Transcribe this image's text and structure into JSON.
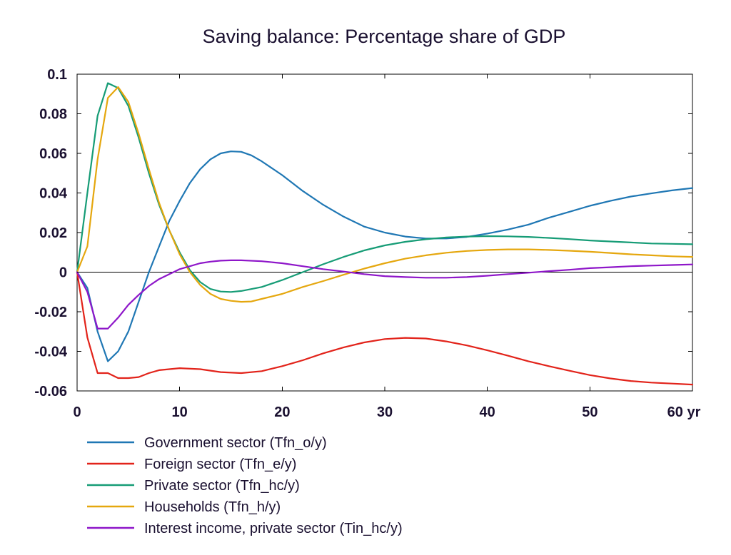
{
  "chart_data": {
    "type": "line",
    "title": "Saving balance: Percentage share of GDP",
    "xlabel": "yr",
    "ylabel": "",
    "xlim": [
      0,
      60
    ],
    "ylim": [
      -0.06,
      0.1
    ],
    "x_ticks": [
      0,
      10,
      20,
      30,
      40,
      50,
      60
    ],
    "x_tick_labels": [
      "0",
      "10",
      "20",
      "30",
      "40",
      "50",
      "60 yr"
    ],
    "y_ticks": [
      -0.06,
      -0.04,
      -0.02,
      0,
      0.02,
      0.04,
      0.06,
      0.08,
      0.1
    ],
    "y_tick_labels": [
      "-0.06",
      "-0.04",
      "-0.02",
      "0",
      "0.02",
      "0.04",
      "0.06",
      "0.08",
      "0.1"
    ],
    "zero_line": true,
    "grid": false,
    "legend_position": "bottom",
    "series": [
      {
        "name": "Government sector (Tfn_o/y)",
        "color": "#1f77b4",
        "points": [
          [
            0,
            0
          ],
          [
            1,
            -0.008
          ],
          [
            2,
            -0.03
          ],
          [
            3,
            -0.045
          ],
          [
            4,
            -0.04
          ],
          [
            5,
            -0.03
          ],
          [
            6,
            -0.015
          ],
          [
            7,
            0
          ],
          [
            8,
            0.013
          ],
          [
            9,
            0.026
          ],
          [
            10,
            0.036
          ],
          [
            11,
            0.045
          ],
          [
            12,
            0.052
          ],
          [
            13,
            0.057
          ],
          [
            14,
            0.06
          ],
          [
            15,
            0.061
          ],
          [
            16,
            0.0608
          ],
          [
            17,
            0.059
          ],
          [
            18,
            0.056
          ],
          [
            20,
            0.049
          ],
          [
            22,
            0.041
          ],
          [
            24,
            0.034
          ],
          [
            26,
            0.028
          ],
          [
            28,
            0.023
          ],
          [
            30,
            0.02
          ],
          [
            32,
            0.018
          ],
          [
            34,
            0.017
          ],
          [
            36,
            0.017
          ],
          [
            38,
            0.0178
          ],
          [
            40,
            0.0195
          ],
          [
            42,
            0.0215
          ],
          [
            44,
            0.024
          ],
          [
            46,
            0.0275
          ],
          [
            48,
            0.0305
          ],
          [
            50,
            0.0335
          ],
          [
            52,
            0.036
          ],
          [
            54,
            0.0382
          ],
          [
            56,
            0.0398
          ],
          [
            58,
            0.0413
          ],
          [
            60,
            0.0425
          ]
        ]
      },
      {
        "name": "Foreign sector (Tfn_e/y)",
        "color": "#e2231a",
        "points": [
          [
            0,
            0
          ],
          [
            1,
            -0.033
          ],
          [
            2,
            -0.051
          ],
          [
            3,
            -0.051
          ],
          [
            4,
            -0.0535
          ],
          [
            5,
            -0.0535
          ],
          [
            6,
            -0.053
          ],
          [
            7,
            -0.051
          ],
          [
            8,
            -0.0495
          ],
          [
            10,
            -0.0485
          ],
          [
            12,
            -0.049
          ],
          [
            14,
            -0.0505
          ],
          [
            16,
            -0.051
          ],
          [
            18,
            -0.05
          ],
          [
            20,
            -0.0475
          ],
          [
            22,
            -0.0445
          ],
          [
            24,
            -0.041
          ],
          [
            26,
            -0.038
          ],
          [
            28,
            -0.0355
          ],
          [
            30,
            -0.0338
          ],
          [
            32,
            -0.0332
          ],
          [
            34,
            -0.0335
          ],
          [
            36,
            -0.035
          ],
          [
            38,
            -0.037
          ],
          [
            40,
            -0.0395
          ],
          [
            42,
            -0.0422
          ],
          [
            44,
            -0.045
          ],
          [
            46,
            -0.0475
          ],
          [
            48,
            -0.0498
          ],
          [
            50,
            -0.052
          ],
          [
            52,
            -0.0537
          ],
          [
            54,
            -0.055
          ],
          [
            56,
            -0.0558
          ],
          [
            58,
            -0.0563
          ],
          [
            60,
            -0.0568
          ]
        ]
      },
      {
        "name": "Private sector (Tfn_hc/y)",
        "color": "#169c76",
        "points": [
          [
            0,
            0
          ],
          [
            1,
            0.04
          ],
          [
            2,
            0.079
          ],
          [
            3,
            0.0955
          ],
          [
            4,
            0.093
          ],
          [
            5,
            0.084
          ],
          [
            6,
            0.068
          ],
          [
            7,
            0.05
          ],
          [
            8,
            0.034
          ],
          [
            9,
            0.021
          ],
          [
            10,
            0.01
          ],
          [
            11,
            0.001
          ],
          [
            12,
            -0.005
          ],
          [
            13,
            -0.0085
          ],
          [
            14,
            -0.0098
          ],
          [
            15,
            -0.01
          ],
          [
            16,
            -0.0095
          ],
          [
            18,
            -0.0075
          ],
          [
            20,
            -0.004
          ],
          [
            22,
            0
          ],
          [
            24,
            0.004
          ],
          [
            26,
            0.0077
          ],
          [
            28,
            0.011
          ],
          [
            30,
            0.0135
          ],
          [
            32,
            0.0153
          ],
          [
            34,
            0.0166
          ],
          [
            36,
            0.0175
          ],
          [
            38,
            0.018
          ],
          [
            40,
            0.0182
          ],
          [
            42,
            0.0181
          ],
          [
            44,
            0.0178
          ],
          [
            46,
            0.0173
          ],
          [
            48,
            0.0167
          ],
          [
            50,
            0.016
          ],
          [
            52,
            0.0155
          ],
          [
            54,
            0.015
          ],
          [
            56,
            0.0145
          ],
          [
            58,
            0.0143
          ],
          [
            60,
            0.0141
          ]
        ]
      },
      {
        "name": "Households (Tfn_h/y)",
        "color": "#e5a70e",
        "points": [
          [
            0,
            0
          ],
          [
            1,
            0.013
          ],
          [
            2,
            0.057
          ],
          [
            3,
            0.088
          ],
          [
            4,
            0.0935
          ],
          [
            5,
            0.086
          ],
          [
            6,
            0.07
          ],
          [
            7,
            0.052
          ],
          [
            8,
            0.035
          ],
          [
            9,
            0.021
          ],
          [
            10,
            0.009
          ],
          [
            11,
            0
          ],
          [
            12,
            -0.0065
          ],
          [
            13,
            -0.011
          ],
          [
            14,
            -0.0135
          ],
          [
            15,
            -0.0145
          ],
          [
            16,
            -0.015
          ],
          [
            17,
            -0.0148
          ],
          [
            18,
            -0.0135
          ],
          [
            20,
            -0.011
          ],
          [
            22,
            -0.0075
          ],
          [
            24,
            -0.0045
          ],
          [
            26,
            -0.0013
          ],
          [
            28,
            0.0018
          ],
          [
            30,
            0.0045
          ],
          [
            32,
            0.0068
          ],
          [
            34,
            0.0085
          ],
          [
            36,
            0.0098
          ],
          [
            38,
            0.0107
          ],
          [
            40,
            0.0112
          ],
          [
            42,
            0.0115
          ],
          [
            44,
            0.0115
          ],
          [
            46,
            0.0112
          ],
          [
            48,
            0.0108
          ],
          [
            50,
            0.0103
          ],
          [
            52,
            0.0097
          ],
          [
            54,
            0.009
          ],
          [
            56,
            0.0085
          ],
          [
            58,
            0.008
          ],
          [
            60,
            0.0077
          ]
        ]
      },
      {
        "name": "Interest income, private sector (Tin_hc/y)",
        "color": "#8e16c9",
        "points": [
          [
            0,
            0
          ],
          [
            1,
            -0.01
          ],
          [
            2,
            -0.0285
          ],
          [
            3,
            -0.0285
          ],
          [
            4,
            -0.023
          ],
          [
            5,
            -0.0165
          ],
          [
            6,
            -0.0115
          ],
          [
            7,
            -0.007
          ],
          [
            8,
            -0.0035
          ],
          [
            9,
            -0.001
          ],
          [
            10,
            0.0015
          ],
          [
            11,
            0.003
          ],
          [
            12,
            0.0045
          ],
          [
            13,
            0.0053
          ],
          [
            14,
            0.0058
          ],
          [
            15,
            0.006
          ],
          [
            16,
            0.006
          ],
          [
            18,
            0.0055
          ],
          [
            20,
            0.0045
          ],
          [
            22,
            0.003
          ],
          [
            24,
            0.0015
          ],
          [
            26,
            0.0003
          ],
          [
            28,
            -0.001
          ],
          [
            30,
            -0.002
          ],
          [
            32,
            -0.0025
          ],
          [
            34,
            -0.0028
          ],
          [
            36,
            -0.0028
          ],
          [
            38,
            -0.0025
          ],
          [
            40,
            -0.0018
          ],
          [
            42,
            -0.001
          ],
          [
            44,
            -0.0003
          ],
          [
            46,
            0.0005
          ],
          [
            48,
            0.0012
          ],
          [
            50,
            0.002
          ],
          [
            52,
            0.0025
          ],
          [
            54,
            0.003
          ],
          [
            56,
            0.0033
          ],
          [
            58,
            0.0036
          ],
          [
            60,
            0.0039
          ]
        ]
      }
    ]
  }
}
